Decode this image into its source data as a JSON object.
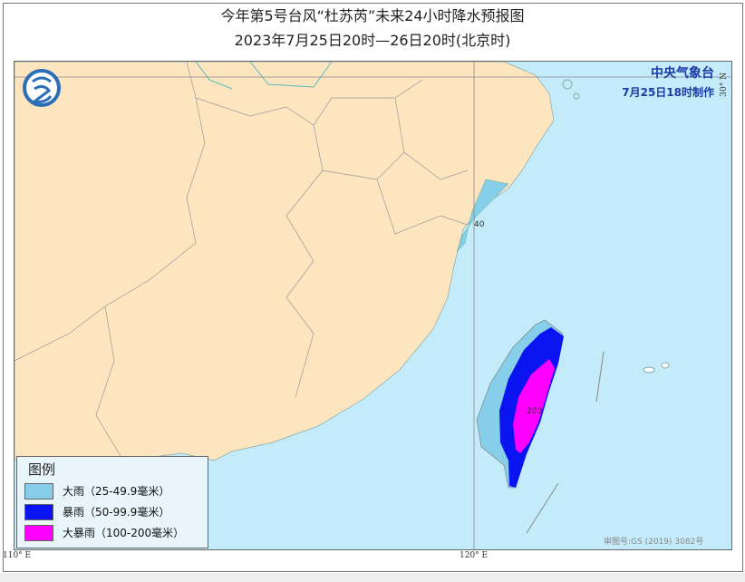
{
  "title": "今年第5号台风“杜苏芮”未来24小时降水预报图",
  "subtitle": "2023年7月25日20时—26日20时(北京时)",
  "agency": {
    "name": "中央气象台",
    "issued": "7月25日18时制作"
  },
  "legend": {
    "title": "图例",
    "items": [
      {
        "label": "大雨（25-49.9毫米）",
        "color": "#87ceeb"
      },
      {
        "label": "暴雨（50-99.9毫米）",
        "color": "#0a14f0"
      },
      {
        "label": "大暴雨（100-200毫米）",
        "color": "#ff00ff"
      }
    ]
  },
  "contour_labels": [
    "40",
    "200"
  ],
  "axes": {
    "lon_110": "110° E",
    "lon_120": "120° E",
    "lat_30": "30° N"
  },
  "map_approval": "审图号:GS (2019) 3082号",
  "colors": {
    "land": "#fde5c0",
    "sea": "#c4ebf9"
  },
  "logo": "CMA"
}
